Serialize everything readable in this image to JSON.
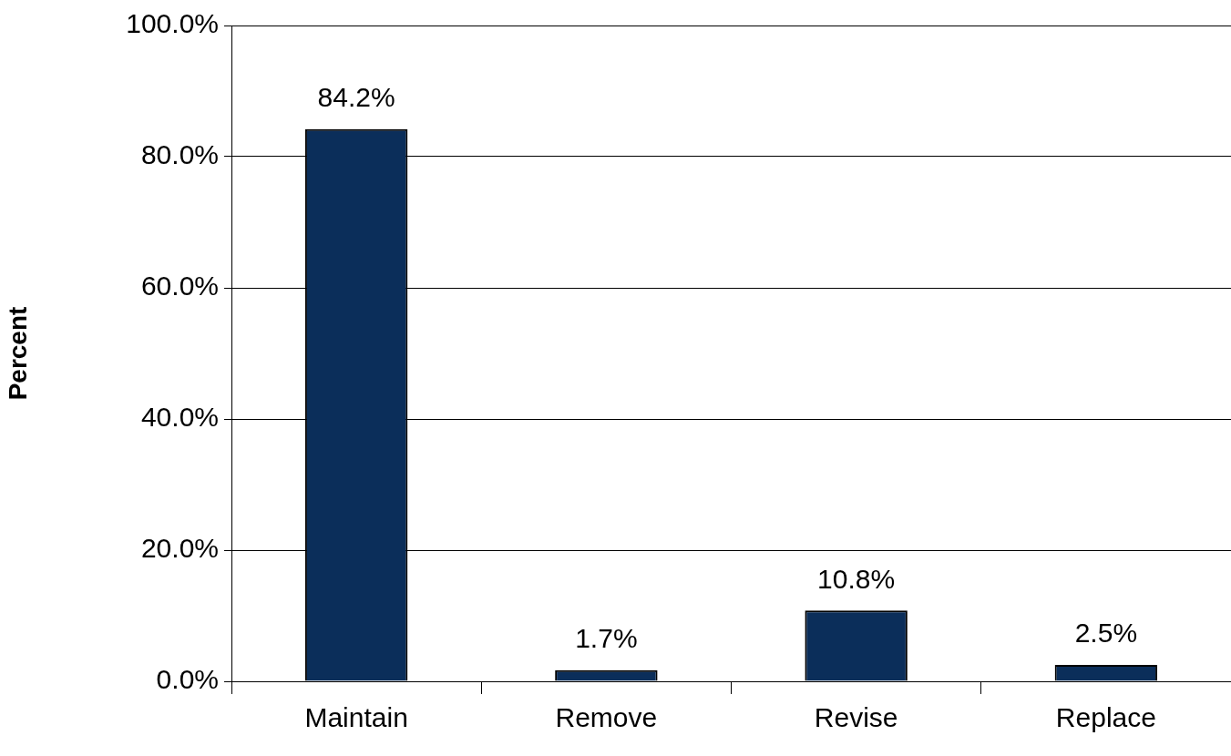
{
  "chart_data": {
    "type": "bar",
    "ylabel": "Percent",
    "categories": [
      "Maintain",
      "Remove",
      "Revise",
      "Replace"
    ],
    "values": [
      84.2,
      1.7,
      10.8,
      2.5
    ],
    "value_labels": [
      "84.2%",
      "1.7%",
      "10.8%",
      "2.5%"
    ],
    "color": "#0b2e5a",
    "ylim": [
      0,
      100
    ],
    "yticks": [
      {
        "value": 0,
        "label": "0.0%"
      },
      {
        "value": 20,
        "label": "20.0%"
      },
      {
        "value": 40,
        "label": "40.0%"
      },
      {
        "value": 60,
        "label": "60.0%"
      },
      {
        "value": 80,
        "label": "80.0%"
      },
      {
        "value": 100,
        "label": "100.0%"
      }
    ],
    "grid": "y",
    "legend": false
  }
}
